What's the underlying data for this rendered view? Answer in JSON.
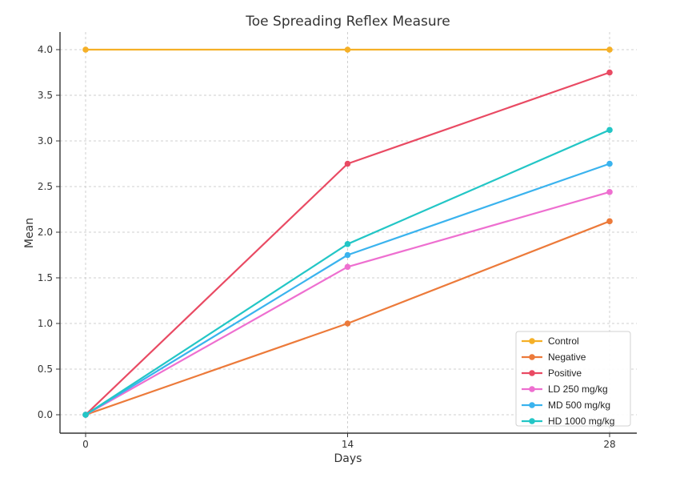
{
  "chart_data": {
    "type": "line",
    "title": "Toe Spreading Reflex Measure",
    "xlabel": "Days",
    "ylabel": "Mean",
    "x": [
      0,
      14,
      28
    ],
    "x_tick_labels": [
      "0",
      "14",
      "28"
    ],
    "ylim": [
      -0.15,
      4.2
    ],
    "y_ticks": [
      0.0,
      0.5,
      1.0,
      1.5,
      2.0,
      2.5,
      3.0,
      3.5,
      4.0
    ],
    "y_tick_labels": [
      "0.0",
      "0.5",
      "1.0",
      "1.5",
      "2.0",
      "2.5",
      "3.0",
      "3.5",
      "4.0"
    ],
    "grid": true,
    "legend_position": "bottom-right",
    "series": [
      {
        "name": "Control",
        "color": "#f5b027",
        "values": [
          4.0,
          4.0,
          4.0
        ]
      },
      {
        "name": "Negative",
        "color": "#ec7a3a",
        "values": [
          0.0,
          1.0,
          2.12
        ]
      },
      {
        "name": "Positive",
        "color": "#e94a63",
        "values": [
          0.0,
          2.75,
          3.75
        ]
      },
      {
        "name": "LD 250 mg/kg",
        "color": "#ee6fd0",
        "values": [
          0.0,
          1.62,
          2.44
        ]
      },
      {
        "name": "MD 500 mg/kg",
        "color": "#3ab3ee",
        "values": [
          0.0,
          1.75,
          2.75
        ]
      },
      {
        "name": "HD 1000 mg/kg",
        "color": "#23c6c6",
        "values": [
          0.0,
          1.87,
          3.12
        ]
      }
    ]
  }
}
